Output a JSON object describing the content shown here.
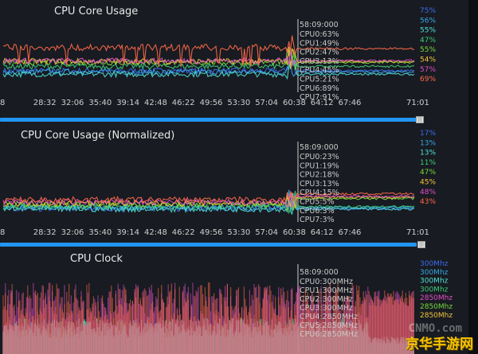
{
  "palette": [
    "#3b6cf0",
    "#35a7e8",
    "#4fe0d6",
    "#3ccc7a",
    "#78d83c",
    "#f0c43c",
    "#e04fc9",
    "#ff6a4a"
  ],
  "charts": [
    {
      "title": "CPU Core Usage",
      "x_ticks": [
        "8",
        "28:32",
        "32:06",
        "35:40",
        "39:14",
        "42:48",
        "46:22",
        "49:56",
        "53:30",
        "57:04",
        "60:38",
        "64:12",
        "67:46",
        "71:01"
      ],
      "tooltip": {
        "time": "58:09:000",
        "lines": [
          "CPU0:63%",
          "CPU1:49%",
          "CPU2:47%",
          "CPU3:13%",
          "CPU4:45%",
          "CPU5:21%",
          "CPU6:89%",
          "CPU7:91%"
        ]
      },
      "legend": [
        {
          "text": "75%",
          "color": "#3b6cf0"
        },
        {
          "text": "56%",
          "color": "#35a7e8"
        },
        {
          "text": "55%",
          "color": "#4fe0d6"
        },
        {
          "text": "47%",
          "color": "#3ccc7a"
        },
        {
          "text": "55%",
          "color": "#78d83c"
        },
        {
          "text": "54%",
          "color": "#f0c43c"
        },
        {
          "text": "57%",
          "color": "#e04fc9"
        },
        {
          "text": "69%",
          "color": "#ff6a4a"
        }
      ]
    },
    {
      "title": "CPU Core Usage (Normalized)",
      "x_ticks": [
        "8",
        "28:32",
        "32:06",
        "35:40",
        "39:14",
        "42:48",
        "46:22",
        "49:56",
        "53:30",
        "57:04",
        "60:38",
        "64:12",
        "67:46",
        "71:01"
      ],
      "tooltip": {
        "time": "58:09:000",
        "lines": [
          "CPU0:23%",
          "CPU1:19%",
          "CPU2:18%",
          "CPU3:13%",
          "CPU4:15%",
          "CPU5:5%",
          "CPU6:3%",
          "CPU7:3%"
        ]
      },
      "legend": [
        {
          "text": "17%",
          "color": "#3b6cf0"
        },
        {
          "text": "13%",
          "color": "#35a7e8"
        },
        {
          "text": "13%",
          "color": "#4fe0d6"
        },
        {
          "text": "11%",
          "color": "#3ccc7a"
        },
        {
          "text": "47%",
          "color": "#78d83c"
        },
        {
          "text": "45%",
          "color": "#f0c43c"
        },
        {
          "text": "48%",
          "color": "#e04fc9"
        },
        {
          "text": "43%",
          "color": "#ff6a4a"
        }
      ]
    },
    {
      "title": "CPU Clock",
      "x_ticks": [],
      "tooltip": {
        "time": "58:09:000",
        "lines": [
          "CPU0:300MHz",
          "CPU1:300MHz",
          "CPU2:300MHz",
          "CPU3:300MHz",
          "CPU4:2850MHz",
          "CPU5:2850MHz",
          "CPU6:2850MHz"
        ]
      },
      "legend": [
        {
          "text": "300Mhz",
          "color": "#3b6cf0"
        },
        {
          "text": "300Mhz",
          "color": "#35a7e8"
        },
        {
          "text": "300Mhz",
          "color": "#4fe0d6"
        },
        {
          "text": "300Mhz",
          "color": "#3ccc7a"
        },
        {
          "text": "2850Mhz",
          "color": "#e04fc9"
        },
        {
          "text": "2850Mhz",
          "color": "#78d83c"
        },
        {
          "text": "2850Mhz",
          "color": "#f0c43c"
        }
      ]
    }
  ],
  "chart_data": [
    {
      "type": "line",
      "title": "CPU Core Usage",
      "x_range": [
        "8",
        "71:01"
      ],
      "series": [
        {
          "color": "#3b6cf0",
          "base": 30,
          "values": []
        },
        {
          "color": "#35a7e8",
          "base": 28,
          "values": []
        },
        {
          "color": "#4fe0d6",
          "base": 24,
          "values": []
        },
        {
          "color": "#3ccc7a",
          "base": 38,
          "values": []
        },
        {
          "color": "#78d83c",
          "base": 45,
          "values": []
        },
        {
          "color": "#f0c43c",
          "base": 47,
          "values": []
        },
        {
          "color": "#e04fc9",
          "base": 48,
          "values": []
        },
        {
          "color": "#ff6a4a",
          "base": 70,
          "values": []
        }
      ],
      "hover_x": "58:09:000"
    },
    {
      "type": "line",
      "title": "CPU Core Usage (Normalized)",
      "x_range": [
        "8",
        "71:01"
      ],
      "series": [
        {
          "color": "#3b6cf0",
          "base": 15,
          "values": []
        },
        {
          "color": "#35a7e8",
          "base": 17,
          "values": []
        },
        {
          "color": "#4fe0d6",
          "base": 14,
          "values": []
        },
        {
          "color": "#3ccc7a",
          "base": 18,
          "values": []
        },
        {
          "color": "#78d83c",
          "base": 22,
          "values": []
        },
        {
          "color": "#f0c43c",
          "base": 24,
          "values": []
        },
        {
          "color": "#e04fc9",
          "base": 26,
          "values": []
        },
        {
          "color": "#ff6a4a",
          "base": 30,
          "values": []
        }
      ],
      "hover_x": "58:09:000"
    },
    {
      "type": "area",
      "title": "CPU Clock",
      "unit": "MHz",
      "series": [
        {
          "color": "#3ccc7a"
        },
        {
          "color": "#4fe0d6"
        },
        {
          "color": "#e04fc9"
        },
        {
          "color": "#ff6a4a"
        }
      ],
      "hover_x": "58:09:000"
    }
  ],
  "scroll_handle_label": "|||",
  "watermark_text": "京华手游网",
  "watermark_sub": "CNMO.com"
}
